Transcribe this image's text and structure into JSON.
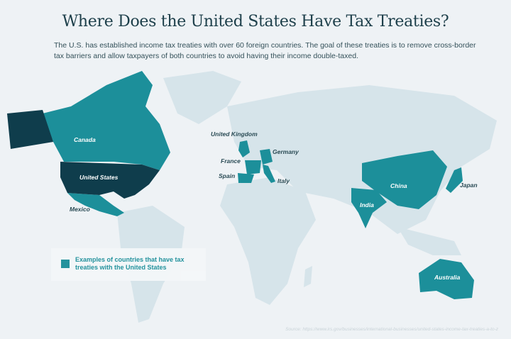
{
  "title": "Where Does the United States Have Tax Treaties?",
  "subtitle": "The U.S. has established income tax treaties with over 60 foreign countries. The goal of these treaties is to remove cross-border tax barriers and allow taxpayers of both countries to avoid having their income double-taxed.",
  "colors": {
    "background": "#eef2f5",
    "land": "#d6e4ea",
    "treaty": "#1c8f9a",
    "united_states": "#0f3d4c"
  },
  "countries": [
    {
      "name": "Canada"
    },
    {
      "name": "United States"
    },
    {
      "name": "Mexico"
    },
    {
      "name": "United Kingdom"
    },
    {
      "name": "Germany"
    },
    {
      "name": "France"
    },
    {
      "name": "Spain"
    },
    {
      "name": "Italy"
    },
    {
      "name": "China"
    },
    {
      "name": "Japan"
    },
    {
      "name": "India"
    },
    {
      "name": "Australia"
    }
  ],
  "legend": {
    "label": "Examples of countries that have tax treaties with the United States"
  },
  "source": "Source: https://www.irs.gov/businesses/international-businesses/united-states-income-tax-treaties-a-to-z"
}
